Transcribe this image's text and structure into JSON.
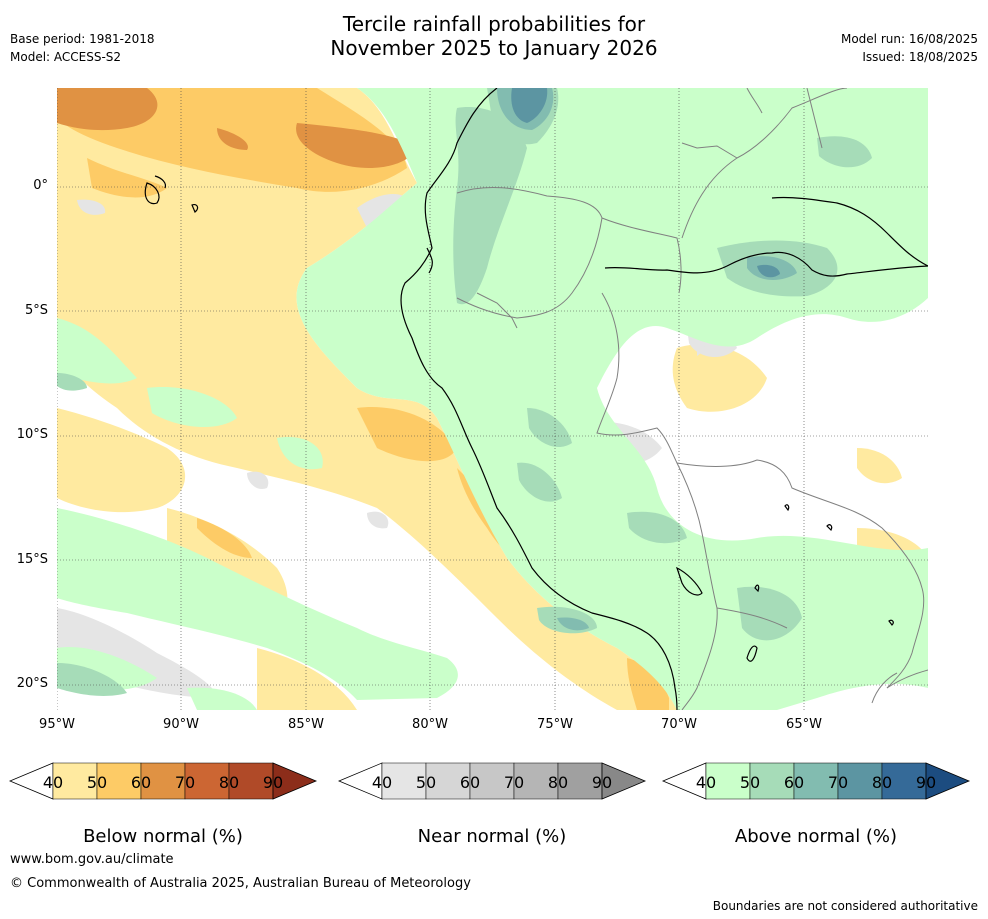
{
  "header": {
    "title_line1": "Tercile rainfall probabilities for",
    "title_line2": "November 2025 to January 2026",
    "base_period": "Base period: 1981-2018",
    "model": "Model: ACCESS-S2",
    "model_run": "Model run: 16/08/2025",
    "issued": "Issued: 18/08/2025"
  },
  "map": {
    "lat_labels": [
      "0°",
      "5°S",
      "10°S",
      "15°S",
      "20°S"
    ],
    "lon_labels": [
      "95°W",
      "90°W",
      "85°W",
      "80°W",
      "75°W",
      "70°W",
      "65°W"
    ],
    "colors": {
      "below": [
        "#ffeaa0",
        "#fdcb66",
        "#e09243",
        "#cc6633",
        "#b04a28",
        "#8c2d1a"
      ],
      "near": [
        "#e5e5e5",
        "#d6d6d6",
        "#c7c7c7",
        "#b5b5b5",
        "#a0a0a0",
        "#888888"
      ],
      "above": [
        "#caffca",
        "#a6dcb8",
        "#82bcb0",
        "#5c95a2",
        "#356a98",
        "#1c4c80"
      ],
      "coast": "#000000",
      "border": "#808080"
    }
  },
  "colorbars": {
    "ticks": [
      "40",
      "50",
      "60",
      "70",
      "80",
      "90"
    ],
    "below_title": "Below normal (%)",
    "near_title": "Near normal (%)",
    "above_title": "Above normal (%)"
  },
  "footer": {
    "website": "www.bom.gov.au/climate",
    "copyright": "© Commonwealth of Australia 2025, Australian Bureau of Meteorology",
    "disclaimer": "Boundaries are not considered authoritative"
  }
}
